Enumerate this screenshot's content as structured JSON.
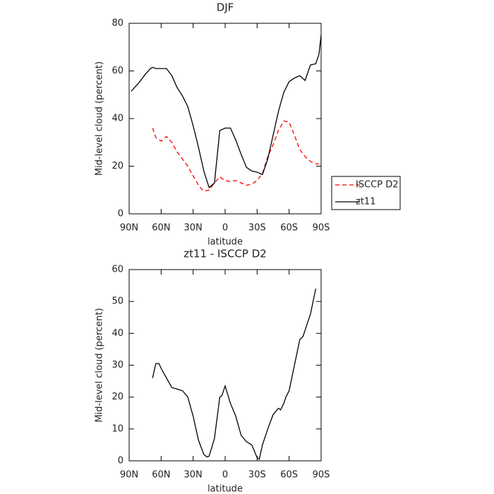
{
  "chart_data": [
    {
      "type": "line",
      "title": "DJF",
      "x_label": "latitude",
      "y_label": "Mid-level cloud (percent)",
      "x": [
        88,
        85,
        80,
        75,
        70,
        68,
        65,
        60,
        55,
        50,
        45,
        40,
        35,
        30,
        25,
        20,
        15,
        10,
        5,
        0,
        -5,
        -10,
        -15,
        -20,
        -25,
        -30,
        -35,
        -40,
        -45,
        -50,
        -55,
        -60,
        -65,
        -70,
        -75,
        -80,
        -85,
        -88,
        -90
      ],
      "series": [
        {
          "name": "ISCCP D2",
          "color": "#ff0000",
          "style": "dashed",
          "values": [
            null,
            null,
            null,
            null,
            null,
            36,
            32,
            30.5,
            32.5,
            30,
            26,
            23,
            20,
            16,
            12,
            9.5,
            10,
            13,
            15.5,
            14,
            13.5,
            14,
            13,
            12,
            12.5,
            14,
            17,
            24,
            29,
            35,
            39,
            38.5,
            33,
            27,
            24,
            22,
            21,
            21,
            null
          ]
        },
        {
          "name": "zt11",
          "color": "#000000",
          "style": "solid",
          "values": [
            51.5,
            53,
            55.5,
            58.5,
            61,
            61.5,
            61,
            61,
            61,
            58,
            53,
            49.5,
            45,
            37,
            28,
            18,
            11,
            13,
            35,
            36,
            36,
            31,
            25,
            19.5,
            18,
            17.5,
            16.5,
            23,
            33,
            43,
            51,
            55.5,
            57,
            58,
            56,
            62.5,
            63,
            67,
            75
          ]
        }
      ],
      "xlim": [
        90,
        -90
      ],
      "xticks": [
        {
          "value": 90,
          "label": "90N"
        },
        {
          "value": 60,
          "label": "60N"
        },
        {
          "value": 30,
          "label": "30N"
        },
        0,
        {
          "value": -30,
          "label": "30S"
        },
        {
          "value": -60,
          "label": "60S"
        },
        {
          "value": -90,
          "label": "90S"
        }
      ],
      "ylim": [
        0,
        80
      ],
      "yticks": [
        0,
        20,
        40,
        60,
        80
      ],
      "legend": "right"
    },
    {
      "type": "line",
      "title": "zt11 - ISCCP D2",
      "x_label": "latitude",
      "y_label": "Mid-level cloud (percent)",
      "x": [
        68,
        65,
        62,
        60,
        55,
        50,
        45,
        40,
        35,
        30,
        25,
        20,
        17,
        15,
        10,
        5,
        3,
        0,
        -5,
        -10,
        -15,
        -20,
        -25,
        -30,
        -32,
        -35,
        -40,
        -45,
        -50,
        -52,
        -55,
        -57,
        -60,
        -65,
        -70,
        -73,
        -75,
        -80,
        -85
      ],
      "series": [
        {
          "color": "#000000",
          "style": "solid",
          "values": [
            26,
            30.5,
            30.5,
            29,
            26,
            23,
            22.5,
            22,
            20,
            14,
            6.5,
            2,
            1.2,
            1.5,
            7,
            20,
            20.5,
            23.5,
            18,
            14,
            8,
            6,
            5,
            1,
            0.5,
            5,
            10,
            14.5,
            16.5,
            16,
            18,
            20,
            22,
            30,
            38,
            39,
            41,
            46,
            54
          ]
        }
      ],
      "xlim": [
        90,
        -90
      ],
      "xticks": [
        {
          "value": 90,
          "label": "90N"
        },
        {
          "value": 60,
          "label": "60N"
        },
        {
          "value": 30,
          "label": "30N"
        },
        0,
        {
          "value": -30,
          "label": "30S"
        },
        {
          "value": -60,
          "label": "60S"
        },
        {
          "value": -90,
          "label": "90S"
        }
      ],
      "ylim": [
        0,
        60
      ],
      "yticks": [
        0,
        10,
        20,
        30,
        40,
        50,
        60
      ]
    }
  ]
}
